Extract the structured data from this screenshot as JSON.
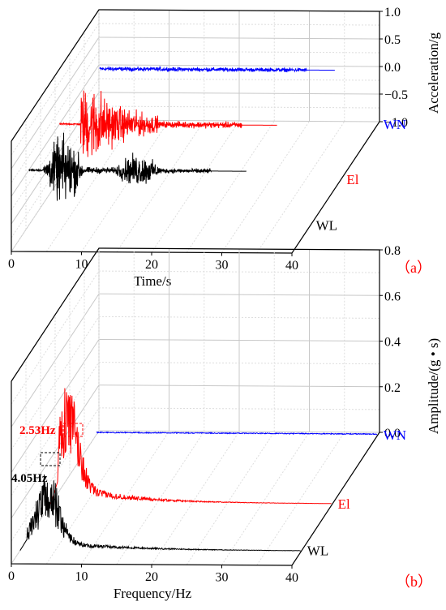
{
  "chart_data": [
    {
      "type": "line",
      "panel_label": "（a）",
      "xlabel": "Time/s",
      "ylabel": "Acceleration/g",
      "xlim": [
        0,
        40
      ],
      "ylim": [
        -1.0,
        1.0
      ],
      "x_ticks": [
        "0",
        "10",
        "20",
        "30",
        "40"
      ],
      "y_ticks": [
        "1.0",
        "0.5",
        "0.0",
        "−0.5",
        "−1.0"
      ],
      "grid": true,
      "depth_categories": [
        "WL",
        "El",
        "WN"
      ],
      "series": [
        {
          "name": "WN",
          "color": "#0000ff",
          "start_s": 0.5,
          "end_s": 31,
          "peak_abs_g": 0.05
        },
        {
          "name": "El",
          "color": "#ff0000",
          "start_s": 0,
          "end_s": 28,
          "peak_abs_g": 1.0
        },
        {
          "name": "WL",
          "color": "#000000",
          "start_s": 0,
          "end_s": 28,
          "peak_abs_g": 0.9
        }
      ]
    },
    {
      "type": "line",
      "panel_label": "（b）",
      "xlabel": "Frequency/Hz",
      "ylabel": "Amplitude/(g • s)",
      "xlim": [
        0,
        40
      ],
      "ylim": [
        0.0,
        0.8
      ],
      "x_ticks": [
        "0",
        "10",
        "20",
        "30",
        "40"
      ],
      "y_ticks": [
        "0.8",
        "0.6",
        "0.4",
        "0.2",
        "0.0"
      ],
      "grid": true,
      "depth_categories": [
        "WL",
        "El",
        "WN"
      ],
      "series": [
        {
          "name": "WN",
          "color": "#0000ff",
          "peak_hz": null,
          "peak_amp": 0.01
        },
        {
          "name": "El",
          "color": "#ff0000",
          "peak_hz": 2.53,
          "peak_amp": 0.33
        },
        {
          "name": "WL",
          "color": "#000000",
          "peak_hz": 4.05,
          "peak_amp": 0.25
        }
      ],
      "annotations": [
        {
          "text": "2.53Hz",
          "color": "#ff0000"
        },
        {
          "text": "4.05Hz",
          "color": "#000000"
        }
      ]
    }
  ]
}
